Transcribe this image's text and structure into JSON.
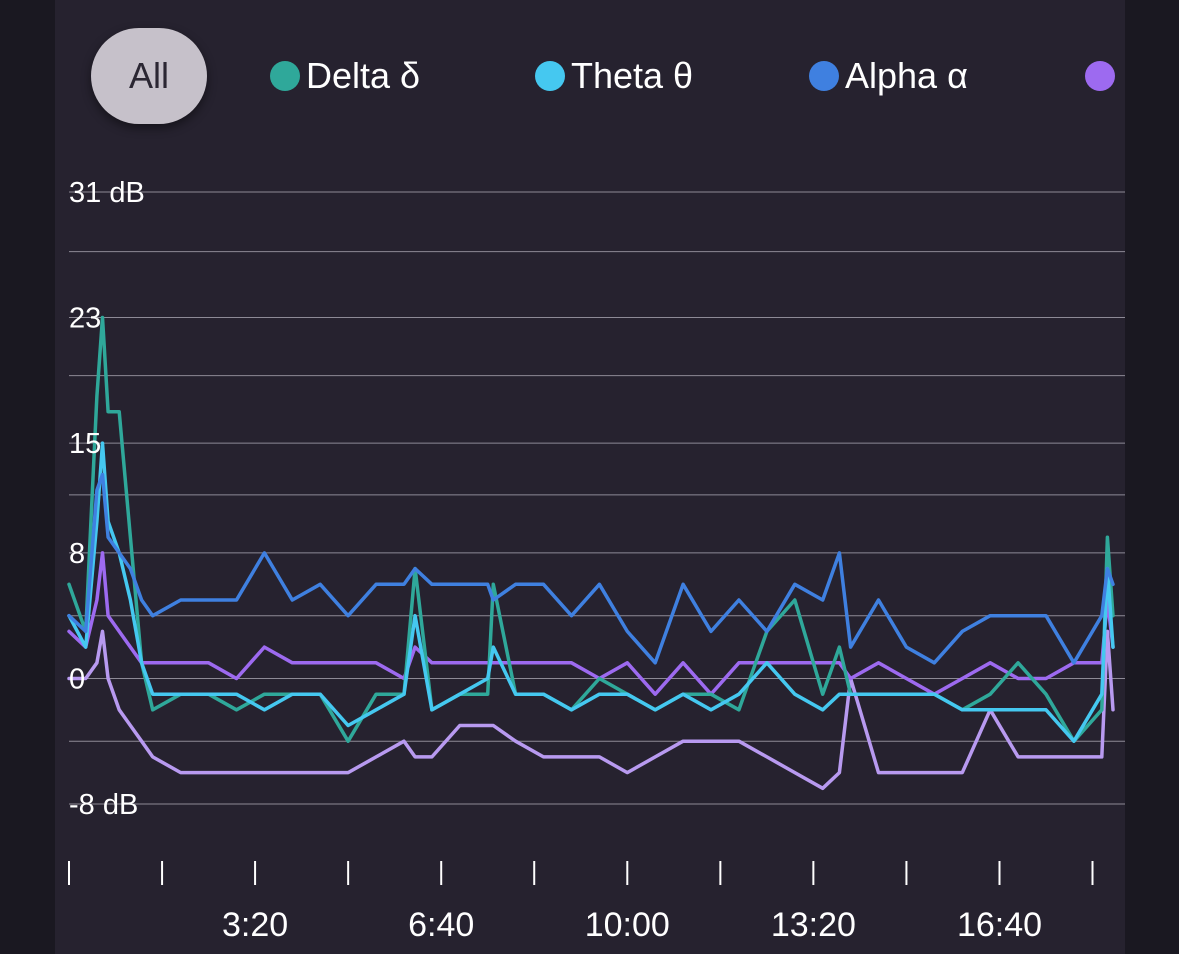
{
  "filter": {
    "all_label": "All"
  },
  "legend": [
    {
      "label": "Delta δ",
      "color": "#2fa89a"
    },
    {
      "label": "Theta θ",
      "color": "#45c8f0"
    },
    {
      "label": "Alpha α",
      "color": "#3f80e0"
    },
    {
      "label": "",
      "color": "#9d6af0"
    }
  ],
  "chart_data": {
    "type": "line",
    "ylabel": "",
    "ylim": [
      -8,
      31
    ],
    "y_ticks": [
      {
        "value": 31,
        "label": "31 dB"
      },
      {
        "value": 23,
        "label": "23"
      },
      {
        "value": 15,
        "label": "15"
      },
      {
        "value": 8,
        "label": "8"
      },
      {
        "value": 0,
        "label": "0"
      },
      {
        "value": -8,
        "label": "-8 dB"
      }
    ],
    "grid_y": [
      31,
      27.2,
      23,
      19.3,
      15,
      11.7,
      8,
      4,
      0,
      -4,
      -8
    ],
    "xlim_minutes": [
      0,
      18.7
    ],
    "x_ticks": [
      {
        "minutes": 3.333,
        "label": "3:20"
      },
      {
        "minutes": 6.667,
        "label": "6:40"
      },
      {
        "minutes": 10,
        "label": "10:00"
      },
      {
        "minutes": 13.333,
        "label": "13:20"
      },
      {
        "minutes": 16.667,
        "label": "16:40"
      }
    ],
    "x_minor_ticks": [
      0,
      1.667,
      5,
      8.333,
      11.667,
      15,
      18.333
    ],
    "x_minutes": [
      0,
      0.3,
      0.5,
      0.6,
      0.7,
      0.9,
      1.1,
      1.3,
      1.5,
      2,
      2.5,
      3,
      3.5,
      4,
      4.5,
      5,
      5.5,
      6,
      6.2,
      6.5,
      7,
      7.5,
      7.6,
      8,
      8.5,
      9,
      9.5,
      10,
      10.5,
      11,
      11.5,
      12,
      12.5,
      13,
      13.5,
      13.8,
      14,
      14.5,
      15,
      15.5,
      16,
      16.5,
      17,
      17.5,
      18,
      18.5,
      18.6,
      18.7
    ],
    "series": [
      {
        "name": "Delta δ",
        "values": [
          6,
          3,
          18,
          23,
          17,
          17,
          9,
          1,
          -2,
          -1,
          -1,
          -2,
          -1,
          -1,
          -1,
          -4,
          -1,
          -1,
          7,
          -2,
          -1,
          -1,
          6,
          -1,
          -1,
          -2,
          0,
          -1,
          -2,
          -1,
          -1,
          -2,
          3,
          5,
          -1,
          2,
          -1,
          -1,
          -1,
          -1,
          -2,
          -1,
          1,
          -1,
          -4,
          -2,
          9,
          4
        ]
      },
      {
        "name": "Theta θ",
        "values": [
          4,
          2,
          10,
          15,
          10,
          8,
          5,
          1,
          -1,
          -1,
          -1,
          -1,
          -2,
          -1,
          -1,
          -3,
          -2,
          -1,
          4,
          -2,
          -1,
          0,
          2,
          -1,
          -1,
          -2,
          -1,
          -1,
          -2,
          -1,
          -2,
          -1,
          1,
          -1,
          -2,
          -1,
          -1,
          -1,
          -1,
          -1,
          -2,
          -2,
          -2,
          -2,
          -4,
          -1,
          7,
          2
        ]
      },
      {
        "name": "Alpha α",
        "values": [
          4,
          3,
          12,
          13,
          9,
          8,
          7,
          5,
          4,
          5,
          5,
          5,
          8,
          5,
          6,
          4,
          6,
          6,
          7,
          6,
          6,
          6,
          5,
          6,
          6,
          4,
          6,
          3,
          1,
          6,
          3,
          5,
          3,
          6,
          5,
          8,
          2,
          5,
          2,
          1,
          3,
          4,
          4,
          4,
          1,
          4,
          7,
          6
        ]
      },
      {
        "name": "",
        "values": [
          3,
          2,
          5,
          8,
          4,
          3,
          2,
          1,
          1,
          1,
          1,
          0,
          2,
          1,
          1,
          1,
          1,
          0,
          2,
          1,
          1,
          1,
          1,
          1,
          1,
          1,
          0,
          1,
          -1,
          1,
          -1,
          1,
          1,
          1,
          1,
          1,
          0,
          1,
          0,
          -1,
          0,
          1,
          0,
          0,
          1,
          1,
          5,
          2
        ]
      },
      {
        "name": "",
        "values": [
          0,
          0,
          1,
          3,
          0,
          -2,
          -3,
          -4,
          -5,
          -6,
          -6,
          -6,
          -6,
          -6,
          -6,
          -6,
          -5,
          -4,
          -5,
          -5,
          -3,
          -3,
          -3,
          -4,
          -5,
          -5,
          -5,
          -6,
          -5,
          -4,
          -4,
          -4,
          -5,
          -6,
          -7,
          -6,
          0,
          -6,
          -6,
          -6,
          -6,
          -2,
          -5,
          -5,
          -5,
          -5,
          3,
          -2
        ]
      }
    ]
  }
}
